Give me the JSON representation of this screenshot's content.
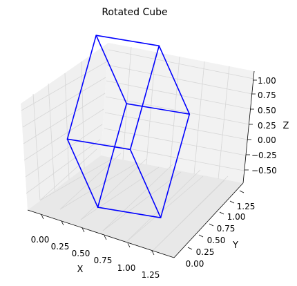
{
  "chart_data": {
    "type": "line",
    "projection": "3d",
    "title": "Rotated Cube",
    "xlabel": "X",
    "ylabel": "Y",
    "zlabel": "Z",
    "grid": true,
    "line_color": "#0000ff",
    "pane_color": "#f2f2f2",
    "xlim": [
      -0.1,
      1.38
    ],
    "ylim": [
      -0.1,
      1.38
    ],
    "zlim": [
      -0.62,
      1.0
    ],
    "x_ticks": [
      "0.00",
      "0.25",
      "0.50",
      "0.75",
      "1.00",
      "1.25"
    ],
    "y_ticks": [
      "0.00",
      "0.25",
      "0.50",
      "0.75",
      "1.00",
      "1.25"
    ],
    "z_ticks": [
      "−0.50",
      "−0.25",
      "0.00",
      "0.25",
      "0.50",
      "0.75",
      "1.00"
    ],
    "series": [
      {
        "name": "",
        "edges": [
          [
            [
              0.47,
              0.18,
              -0.52
            ],
            [
              1.1,
              0.17,
              -0.37
            ]
          ],
          [
            [
              1.1,
              0.17,
              -0.37
            ],
            [
              1.0,
              0.86,
              0.58
            ]
          ],
          [
            [
              1.0,
              0.86,
              0.58
            ],
            [
              0.37,
              0.87,
              0.43
            ]
          ],
          [
            [
              0.37,
              0.87,
              0.43
            ],
            [
              0.47,
              0.18,
              -0.52
            ]
          ],
          [
            [
              0.0,
              0.44,
              0.06
            ],
            [
              0.63,
              0.43,
              0.21
            ]
          ],
          [
            [
              0.63,
              0.43,
              0.21
            ],
            [
              0.53,
              1.12,
              1.16
            ]
          ],
          [
            [
              0.53,
              1.12,
              1.16
            ],
            [
              -0.1,
              1.13,
              1.01
            ]
          ],
          [
            [
              -0.1,
              1.13,
              1.01
            ],
            [
              0.0,
              0.44,
              0.06
            ]
          ],
          [
            [
              0.47,
              0.18,
              -0.52
            ],
            [
              0.0,
              0.44,
              0.06
            ]
          ],
          [
            [
              1.1,
              0.17,
              -0.37
            ],
            [
              0.63,
              0.43,
              0.21
            ]
          ],
          [
            [
              1.0,
              0.86,
              0.58
            ],
            [
              0.53,
              1.12,
              1.16
            ]
          ],
          [
            [
              0.37,
              0.87,
              0.43
            ],
            [
              -0.1,
              1.13,
              1.01
            ]
          ]
        ]
      }
    ]
  }
}
